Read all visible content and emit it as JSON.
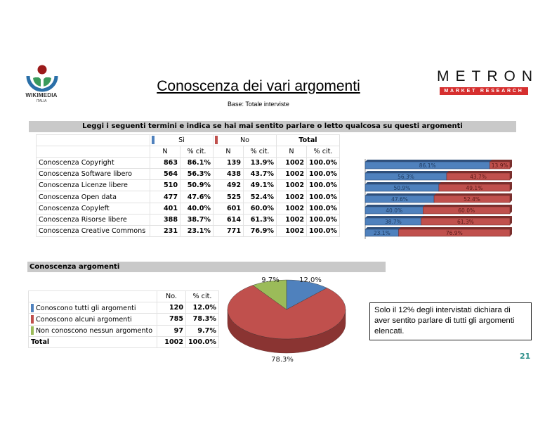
{
  "header": {
    "logo_left": {
      "name": "WIKIMEDIA",
      "subname": "ITALIA"
    },
    "title": "Conoscenza dei vari argomenti",
    "subtitle": "Base: Totale interviste",
    "logo_right": {
      "name": "METRON",
      "tagline": "MARKET RESEARCH"
    }
  },
  "section1": {
    "banner": "Leggi i seguenti termini e indica se hai mai sentito parlare o letto qualcosa su questi argomenti",
    "columns": {
      "si": "Sì",
      "no": "No",
      "total": "Total",
      "n": "N",
      "pct": "% cit."
    },
    "colors": {
      "si": "#4f81bd",
      "no": "#c0504d"
    },
    "rows": [
      {
        "label": "Conoscenza Copyright",
        "si_n": "863",
        "si_pct": "86.1%",
        "no_n": "139",
        "no_pct": "13.9%",
        "tot_n": "1002",
        "tot_pct": "100.0%"
      },
      {
        "label": "Conoscenza Software libero",
        "si_n": "564",
        "si_pct": "56.3%",
        "no_n": "438",
        "no_pct": "43.7%",
        "tot_n": "1002",
        "tot_pct": "100.0%"
      },
      {
        "label": "Conoscenza Licenze libere",
        "si_n": "510",
        "si_pct": "50.9%",
        "no_n": "492",
        "no_pct": "49.1%",
        "tot_n": "1002",
        "tot_pct": "100.0%"
      },
      {
        "label": "Conoscenza Open data",
        "si_n": "477",
        "si_pct": "47.6%",
        "no_n": "525",
        "no_pct": "52.4%",
        "tot_n": "1002",
        "tot_pct": "100.0%"
      },
      {
        "label": "Conoscenza Copyleft",
        "si_n": "401",
        "si_pct": "40.0%",
        "no_n": "601",
        "no_pct": "60.0%",
        "tot_n": "1002",
        "tot_pct": "100.0%"
      },
      {
        "label": "Conoscenza Risorse libere",
        "si_n": "388",
        "si_pct": "38.7%",
        "no_n": "614",
        "no_pct": "61.3%",
        "tot_n": "1002",
        "tot_pct": "100.0%"
      },
      {
        "label": "Conoscenza Creative Commons",
        "si_n": "231",
        "si_pct": "23.1%",
        "no_n": "771",
        "no_pct": "76.9%",
        "tot_n": "1002",
        "tot_pct": "100.0%"
      }
    ]
  },
  "section2": {
    "banner": "Conoscenza argomenti",
    "columns": {
      "n": "No.",
      "pct": "% cit."
    },
    "rows": [
      {
        "label": "Conoscono tutti gli argomenti",
        "n": "120",
        "pct": "12.0%",
        "color": "#4f81bd"
      },
      {
        "label": "Conoscono alcuni argomenti",
        "n": "785",
        "pct": "78.3%",
        "color": "#c0504d"
      },
      {
        "label": "Non conoscono nessun argomento",
        "n": "97",
        "pct": "9.7%",
        "color": "#9bbb59"
      }
    ],
    "total": {
      "label": "Total",
      "n": "1002",
      "pct": "100.0%"
    },
    "note": "Solo il 12% degli intervistati dichiara di aver sentito parlare di tutti gli argomenti elencati."
  },
  "page_number": "21",
  "chart_data": [
    {
      "type": "bar",
      "orientation": "horizontal-stacked-100",
      "title": "",
      "categories": [
        "Conoscenza Copyright",
        "Conoscenza Software libero",
        "Conoscenza Licenze libere",
        "Conoscenza Open data",
        "Conoscenza Copyleft",
        "Conoscenza Risorse libere",
        "Conoscenza Creative Commons"
      ],
      "series": [
        {
          "name": "Sì",
          "color": "#4f81bd",
          "values": [
            86.1,
            56.3,
            50.9,
            47.6,
            40.0,
            38.7,
            23.1
          ]
        },
        {
          "name": "No",
          "color": "#c0504d",
          "values": [
            13.9,
            43.7,
            49.1,
            52.4,
            60.0,
            61.3,
            76.9
          ]
        }
      ],
      "xlim": [
        0,
        100
      ],
      "data_labels": true,
      "legend_position": "table header"
    },
    {
      "type": "pie",
      "title": "Conoscenza argomenti",
      "categories": [
        "Conoscono tutti gli argomenti",
        "Conoscono alcuni argomenti",
        "Non conoscono nessun argomento"
      ],
      "values": [
        12.0,
        78.3,
        9.7
      ],
      "counts": [
        120,
        785,
        97
      ],
      "colors": [
        "#4f81bd",
        "#c0504d",
        "#9bbb59"
      ],
      "labels": [
        "12.0%",
        "78.3%",
        "9.7%"
      ],
      "style": "3d"
    }
  ]
}
